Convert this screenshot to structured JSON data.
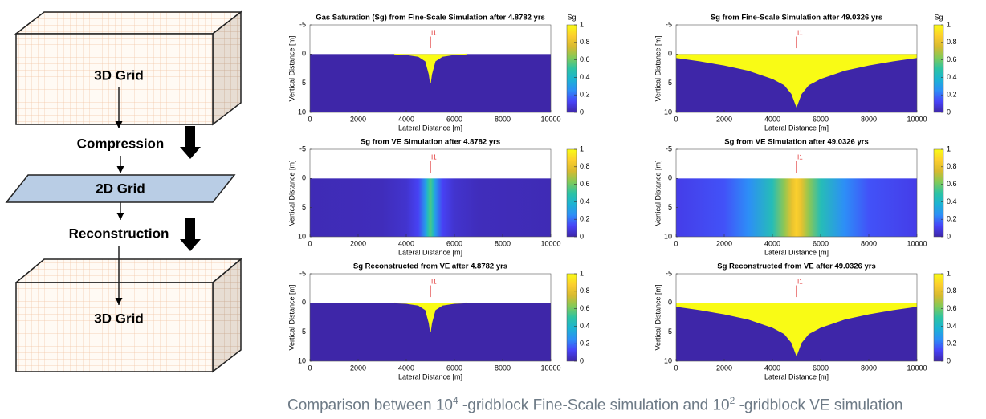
{
  "diagram": {
    "top_box": "3D Grid",
    "step1": "Compression",
    "middle": "2D Grid",
    "step2": "Reconstruction",
    "bottom_box": "3D Grid"
  },
  "caption": {
    "parts": [
      "Comparison between 10",
      "4",
      " -gridblock Fine-Scale simulation and 10",
      "2",
      " -gridblock VE simulation"
    ]
  },
  "colormap": [
    "#3e26a8",
    "#4743f8",
    "#2d8ef7",
    "#1cb3d3",
    "#2dc3a3",
    "#81ca59",
    "#d7ba2f",
    "#fcce2e",
    "#f9fb15"
  ],
  "chart_data": [
    {
      "type": "heatmap",
      "title": "Gas Saturation (Sg) from Fine-Scale Simulation after 4.8782 yrs",
      "xlabel": "Lateral Distance [m]",
      "ylabel": "Vertical Distance [m]",
      "colorbar_label": "Sg",
      "xlim": [
        0,
        10000
      ],
      "ylim": [
        -5,
        10
      ],
      "y_reversed": true,
      "xticks": [
        0,
        2000,
        4000,
        6000,
        8000,
        10000
      ],
      "yticks": [
        -5,
        0,
        5,
        10
      ],
      "clim": [
        0,
        1
      ],
      "cticks": [
        0,
        0.2,
        0.4,
        0.6,
        0.8,
        1
      ],
      "well": {
        "label": "I1",
        "x": 5000,
        "top": -3,
        "bottom": -1
      },
      "x": [
        3500,
        4000,
        4500,
        4800,
        4950,
        5000,
        5050,
        5200,
        5500,
        6000,
        6500
      ],
      "plume_depth": [
        0,
        0.1,
        0.4,
        1.2,
        3.5,
        5,
        3.5,
        1.2,
        0.4,
        0.1,
        0
      ]
    },
    {
      "type": "heatmap",
      "title": "Sg from Fine-Scale Simulation after 49.0326 yrs",
      "xlabel": "Lateral Distance [m]",
      "ylabel": "Vertical Distance [m]",
      "colorbar_label": "Sg",
      "xlim": [
        0,
        10000
      ],
      "ylim": [
        -5,
        10
      ],
      "y_reversed": true,
      "xticks": [
        0,
        2000,
        4000,
        6000,
        8000,
        10000
      ],
      "yticks": [
        -5,
        0,
        5,
        10
      ],
      "clim": [
        0,
        1
      ],
      "cticks": [
        0,
        0.2,
        0.4,
        0.6,
        0.8,
        1
      ],
      "well": {
        "label": "I1",
        "x": 5000,
        "top": -3,
        "bottom": -1
      },
      "x": [
        0,
        1000,
        2000,
        3000,
        4000,
        4500,
        4800,
        5000,
        5200,
        5500,
        6000,
        7000,
        8000,
        9000,
        10000
      ],
      "plume_depth": [
        0.6,
        1.2,
        1.9,
        2.8,
        4.2,
        5.3,
        6.8,
        9,
        6.8,
        5.3,
        4.2,
        2.8,
        1.9,
        1.2,
        0.6
      ]
    },
    {
      "type": "heatmap",
      "title": "Sg from VE Simulation after 4.8782 yrs",
      "xlabel": "Lateral Distance [m]",
      "ylabel": "Vertical Distance [m]",
      "xlim": [
        0,
        10000
      ],
      "ylim": [
        -5,
        10
      ],
      "y_reversed": true,
      "xticks": [
        0,
        2000,
        4000,
        6000,
        8000,
        10000
      ],
      "yticks": [
        -5,
        0,
        5,
        10
      ],
      "clim": [
        0,
        1
      ],
      "cticks": [
        0,
        0.2,
        0.4,
        0.6,
        0.8,
        1
      ],
      "well": {
        "label": "I1",
        "x": 5000,
        "top": -3,
        "bottom": -1
      },
      "x": [
        0,
        3000,
        4000,
        4500,
        4800,
        4900,
        5000,
        5100,
        5200,
        5500,
        6000,
        7000,
        10000
      ],
      "sg": [
        0.02,
        0.03,
        0.06,
        0.12,
        0.3,
        0.45,
        0.55,
        0.45,
        0.3,
        0.12,
        0.06,
        0.03,
        0.02
      ]
    },
    {
      "type": "heatmap",
      "title": "Sg from VE Simulation after 49.0326 yrs",
      "xlabel": "Lateral Distance [m]",
      "ylabel": "Vertical Distance [m]",
      "xlim": [
        0,
        10000
      ],
      "ylim": [
        -5,
        10
      ],
      "y_reversed": true,
      "xticks": [
        0,
        2000,
        4000,
        6000,
        8000,
        10000
      ],
      "yticks": [
        -5,
        0,
        5,
        10
      ],
      "clim": [
        0,
        1
      ],
      "cticks": [
        0,
        0.2,
        0.4,
        0.6,
        0.8,
        1
      ],
      "well": {
        "label": "I1",
        "x": 5000,
        "top": -3,
        "bottom": -1
      },
      "x": [
        0,
        2000,
        3000,
        4000,
        4500,
        4800,
        5000,
        5200,
        5500,
        6000,
        7000,
        8000,
        10000
      ],
      "sg": [
        0.1,
        0.15,
        0.25,
        0.45,
        0.65,
        0.8,
        0.88,
        0.8,
        0.65,
        0.45,
        0.25,
        0.15,
        0.1
      ]
    },
    {
      "type": "heatmap",
      "title": "Sg Reconstructed from VE after 4.8782 yrs",
      "xlabel": "Lateral Distance [m]",
      "ylabel": "Vertical Distance [m]",
      "xlim": [
        0,
        10000
      ],
      "ylim": [
        -5,
        10
      ],
      "y_reversed": true,
      "xticks": [
        0,
        2000,
        4000,
        6000,
        8000,
        10000
      ],
      "yticks": [
        -5,
        0,
        5,
        10
      ],
      "clim": [
        0,
        1
      ],
      "cticks": [
        0,
        0.2,
        0.4,
        0.6,
        0.8,
        1
      ],
      "well": {
        "label": "I1",
        "x": 5000,
        "top": -3,
        "bottom": -1
      },
      "x": [
        3500,
        4000,
        4500,
        4800,
        4950,
        5000,
        5050,
        5200,
        5500,
        6000,
        6500
      ],
      "plume_depth": [
        0,
        0.1,
        0.4,
        1.2,
        3.5,
        5,
        3.5,
        1.2,
        0.4,
        0.1,
        0
      ]
    },
    {
      "type": "heatmap",
      "title": "Sg Reconstructed from VE after 49.0326 yrs",
      "xlabel": "Lateral Distance [m]",
      "ylabel": "Vertical Distance [m]",
      "xlim": [
        0,
        10000
      ],
      "ylim": [
        -5,
        10
      ],
      "y_reversed": true,
      "xticks": [
        0,
        2000,
        4000,
        6000,
        8000,
        10000
      ],
      "yticks": [
        -5,
        0,
        5,
        10
      ],
      "clim": [
        0,
        1
      ],
      "cticks": [
        0,
        0.2,
        0.4,
        0.6,
        0.8,
        1
      ],
      "well": {
        "label": "I1",
        "x": 5000,
        "top": -3,
        "bottom": -1
      },
      "x": [
        0,
        1000,
        2000,
        3000,
        4000,
        4500,
        4800,
        5000,
        5200,
        5500,
        6000,
        7000,
        8000,
        9000,
        10000
      ],
      "plume_depth": [
        0.6,
        1.2,
        1.9,
        2.8,
        4.2,
        5.3,
        6.8,
        9,
        6.8,
        5.3,
        4.2,
        2.8,
        1.9,
        1.2,
        0.6
      ]
    }
  ]
}
